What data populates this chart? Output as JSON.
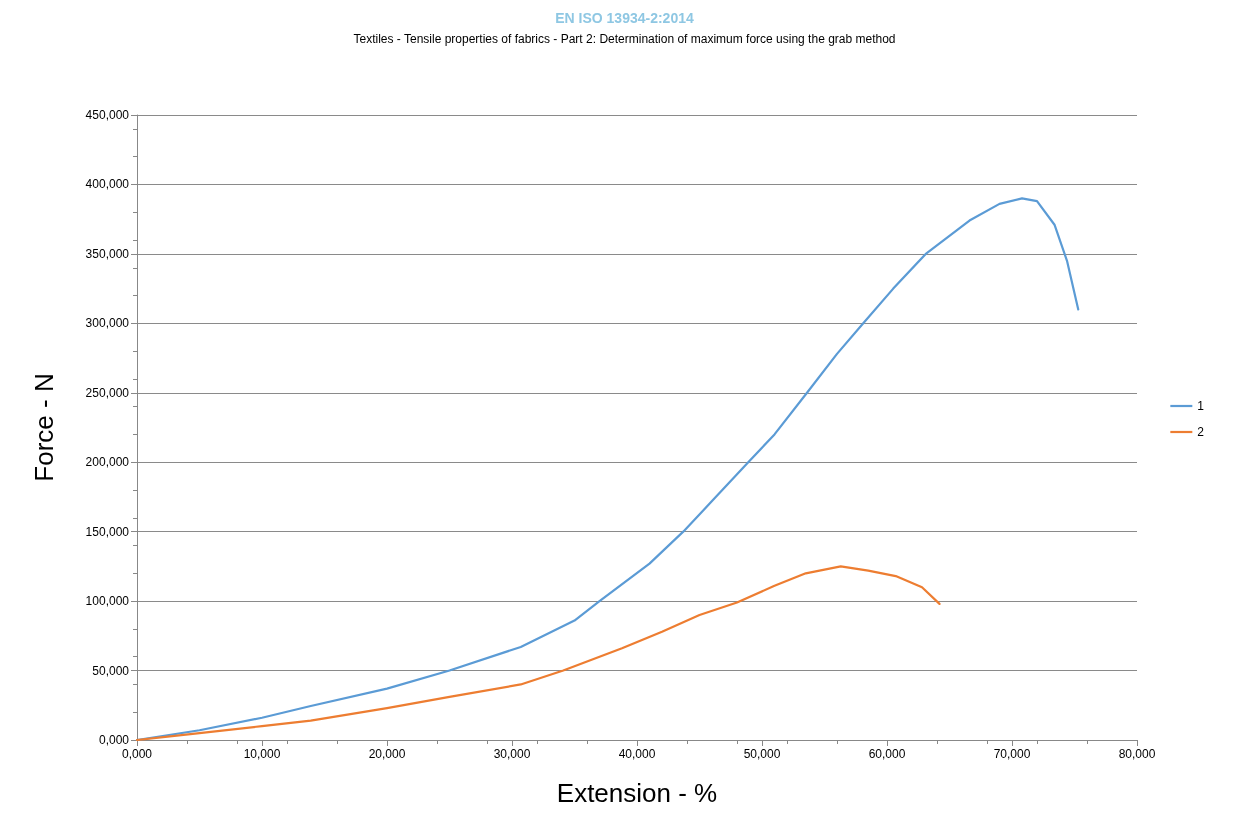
{
  "chart_data": {
    "type": "line",
    "title": "EN ISO 13934-2:2014",
    "subtitle": "Textiles - Tensile properties of fabrics - Part 2: Determination of maximum force using the grab method",
    "xlabel": "Extension - %",
    "ylabel": "Force - N",
    "xlim": [
      0,
      80
    ],
    "xticks": [
      {
        "value": 0,
        "label": "0,000"
      },
      {
        "value": 10,
        "label": "10,000"
      },
      {
        "value": 20,
        "label": "20,000"
      },
      {
        "value": 30,
        "label": "30,000"
      },
      {
        "value": 40,
        "label": "40,000"
      },
      {
        "value": 50,
        "label": "50,000"
      },
      {
        "value": 60,
        "label": "60,000"
      },
      {
        "value": 70,
        "label": "70,000"
      },
      {
        "value": 80,
        "label": "80,000"
      }
    ],
    "ylim": [
      0,
      450
    ],
    "yticks": [
      {
        "value": 0,
        "label": "0,000"
      },
      {
        "value": 50,
        "label": "50,000"
      },
      {
        "value": 100,
        "label": "100,000"
      },
      {
        "value": 150,
        "label": "150,000"
      },
      {
        "value": 200,
        "label": "200,000"
      },
      {
        "value": 250,
        "label": "250,000"
      },
      {
        "value": 300,
        "label": "300,000"
      },
      {
        "value": 350,
        "label": "350,000"
      },
      {
        "value": 400,
        "label": "400,000"
      },
      {
        "value": 450,
        "label": "450,000"
      }
    ],
    "grid": "y",
    "legend": "right",
    "marker": "none",
    "line_style": "solid",
    "series": [
      {
        "name": "1",
        "color": "#5b9bd5",
        "x": [
          0,
          5,
          10,
          13.9,
          20,
          25,
          30.7,
          35,
          37,
          41,
          43.7,
          46,
          48.9,
          51,
          53.6,
          56,
          58.1,
          60.5,
          63.1,
          66.6,
          69,
          70.8,
          72,
          73.4,
          74.4,
          75.3
        ],
        "values": [
          0,
          7,
          16,
          24.5,
          37,
          50,
          67,
          86,
          100,
          127,
          150,
          172,
          200,
          220,
          250,
          278,
          300,
          325,
          350,
          374,
          386,
          390,
          388,
          371,
          345,
          310
        ]
      },
      {
        "name": "2",
        "color": "#ed7d31",
        "x": [
          0,
          5,
          10,
          13.9,
          20,
          25,
          30.7,
          34.1,
          38.8,
          42,
          45,
          48,
          51,
          53.5,
          56.3,
          58.5,
          60.7,
          62.8,
          64.2
        ],
        "values": [
          0,
          5,
          10,
          14,
          23,
          31,
          40,
          50,
          66,
          78,
          90,
          99,
          111,
          120,
          125,
          122,
          118,
          110,
          98
        ]
      }
    ]
  }
}
